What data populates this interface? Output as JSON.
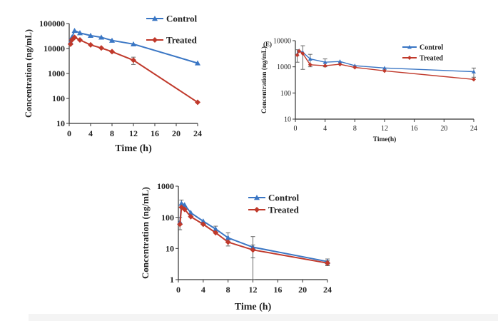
{
  "chart_data": [
    {
      "id": "top-left",
      "type": "line",
      "title": "",
      "xlabel": "Time (h)",
      "ylabel": "Concentration (ng/mL)",
      "yscale": "log",
      "ylim": [
        10,
        100000
      ],
      "xlim": [
        0,
        24
      ],
      "xticks": [
        0,
        4,
        8,
        12,
        16,
        20,
        24
      ],
      "yticks": [
        10,
        100,
        1000,
        10000,
        100000
      ],
      "ytick_labels": [
        "10",
        "100",
        "1000",
        "10000",
        "100000"
      ],
      "legend_position": "top-right",
      "series": [
        {
          "name": "Control",
          "color": "#3a76c4",
          "marker": "triangle",
          "x": [
            0.25,
            0.5,
            1,
            2,
            4,
            6,
            8,
            12,
            24
          ],
          "y": [
            18000,
            28000,
            52000,
            42000,
            33000,
            28000,
            21000,
            15000,
            2600
          ],
          "err": [
            0,
            0,
            0,
            0,
            0,
            0,
            0,
            0,
            0
          ]
        },
        {
          "name": "Treated",
          "color": "#c0392b",
          "marker": "diamond",
          "x": [
            0.25,
            0.5,
            1,
            2,
            4,
            6,
            8,
            12,
            24
          ],
          "y": [
            15000,
            22000,
            28000,
            22000,
            14000,
            10500,
            7500,
            3400,
            70
          ],
          "err": [
            0,
            0,
            0,
            0,
            0,
            0,
            0,
            1100,
            0
          ]
        }
      ]
    },
    {
      "id": "top-right",
      "type": "line",
      "panel_label": "(E)",
      "title": "",
      "xlabel": "Time(h)",
      "ylabel": "Concentration (ng/mL)",
      "yscale": "log",
      "ylim": [
        10,
        10000
      ],
      "xlim": [
        0,
        24
      ],
      "xticks": [
        0,
        4,
        8,
        12,
        16,
        20,
        24
      ],
      "yticks": [
        10,
        100,
        1000,
        10000
      ],
      "ytick_labels": [
        "10",
        "100",
        "1000",
        "10000"
      ],
      "legend_position": "top-right",
      "series": [
        {
          "name": "Control",
          "color": "#3a76c4",
          "marker": "triangle",
          "x": [
            0.25,
            0.5,
            1,
            2,
            4,
            6,
            8,
            12,
            24
          ],
          "y": [
            3000,
            4200,
            3600,
            2000,
            1500,
            1600,
            1100,
            900,
            650
          ],
          "err": [
            1500,
            0,
            2800,
            1000,
            500,
            0,
            0,
            0,
            250
          ]
        },
        {
          "name": "Treated",
          "color": "#c0392b",
          "marker": "diamond",
          "x": [
            0.25,
            0.5,
            1,
            2,
            4,
            6,
            8,
            12,
            24
          ],
          "y": [
            2800,
            4000,
            3200,
            1200,
            1100,
            1250,
            950,
            700,
            330
          ],
          "err": [
            0,
            0,
            0,
            0,
            0,
            0,
            0,
            0,
            0
          ]
        }
      ]
    },
    {
      "id": "bottom",
      "type": "line",
      "title": "",
      "xlabel": "Time (h)",
      "ylabel": "Concentration (ng/mL)",
      "yscale": "log",
      "ylim": [
        1,
        1000
      ],
      "xlim": [
        0,
        24
      ],
      "xticks": [
        0,
        4,
        8,
        12,
        16,
        20,
        24
      ],
      "yticks": [
        1,
        10,
        100,
        1000
      ],
      "ytick_labels": [
        "1",
        "10",
        "100",
        "1000"
      ],
      "legend_position": "top-right",
      "series": [
        {
          "name": "Control",
          "color": "#3a76c4",
          "marker": "triangle",
          "x": [
            0.25,
            0.5,
            1,
            2,
            4,
            6,
            8,
            12,
            24
          ],
          "y": [
            70,
            280,
            250,
            140,
            75,
            42,
            22,
            11,
            3.8
          ],
          "err": [
            30,
            80,
            0,
            0,
            0,
            10,
            10,
            13,
            0.8
          ]
        },
        {
          "name": "Treated",
          "color": "#c0392b",
          "marker": "diamond",
          "x": [
            0.25,
            0.5,
            1,
            2,
            4,
            6,
            8,
            12,
            24
          ],
          "y": [
            60,
            210,
            180,
            105,
            60,
            32,
            16,
            9,
            3.4
          ],
          "err": [
            0,
            0,
            0,
            0,
            0,
            0,
            0,
            4,
            0.6
          ]
        }
      ]
    }
  ]
}
